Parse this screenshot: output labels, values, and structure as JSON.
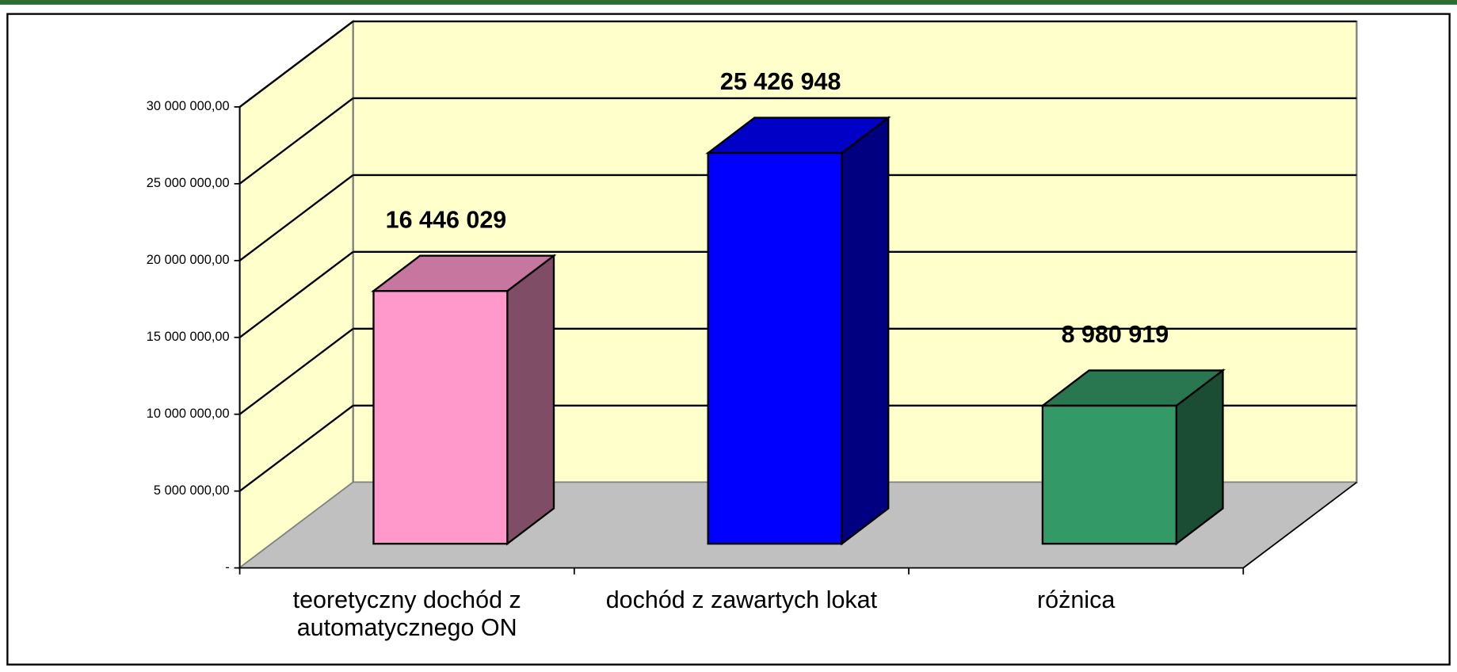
{
  "chart_data": {
    "type": "bar3d",
    "categories": [
      "teoretyczny dochód z automatycznego ON",
      "dochód z zawartych lokat",
      "różnica"
    ],
    "values": [
      16446029,
      25426948,
      8980919
    ],
    "value_labels": [
      "16 446 029",
      "25 426 948",
      "8 980 919"
    ],
    "colors": [
      "#ff99cc",
      "#0000ff",
      "#339966"
    ],
    "ylim": [
      0,
      30000000
    ],
    "yticks": [
      {
        "value": 0,
        "label": "-"
      },
      {
        "value": 5000000,
        "label": "5 000 000,00"
      },
      {
        "value": 10000000,
        "label": "10 000 000,00"
      },
      {
        "value": 15000000,
        "label": "15 000 000,00"
      },
      {
        "value": 20000000,
        "label": "20 000 000,00"
      },
      {
        "value": 25000000,
        "label": "25 000 000,00"
      },
      {
        "value": 30000000,
        "label": "30 000 000,00"
      }
    ],
    "grid": true
  }
}
